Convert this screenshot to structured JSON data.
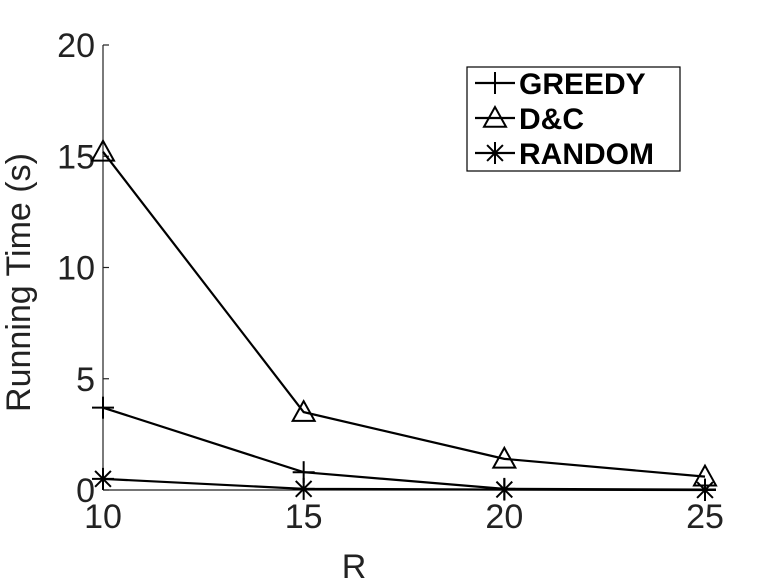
{
  "chart_data": {
    "type": "line",
    "xlabel": "R",
    "ylabel": "Running Time (s)",
    "x": [
      10,
      15,
      20,
      25
    ],
    "xticks": [
      "10",
      "15",
      "20",
      "25"
    ],
    "yticks": [
      "0",
      "5",
      "10",
      "15",
      "20"
    ],
    "xlim": [
      10,
      25
    ],
    "ylim": [
      0,
      20
    ],
    "grid": false,
    "legend_position": "top-right",
    "series": [
      {
        "name": "GREEDY",
        "marker": "plus",
        "values": [
          3.7,
          0.8,
          0.05,
          0.02
        ]
      },
      {
        "name": "D&C",
        "marker": "triangle",
        "values": [
          15.2,
          3.5,
          1.4,
          0.6
        ]
      },
      {
        "name": "RANDOM",
        "marker": "asterisk",
        "values": [
          0.5,
          0.05,
          0.02,
          0.0
        ]
      }
    ]
  }
}
